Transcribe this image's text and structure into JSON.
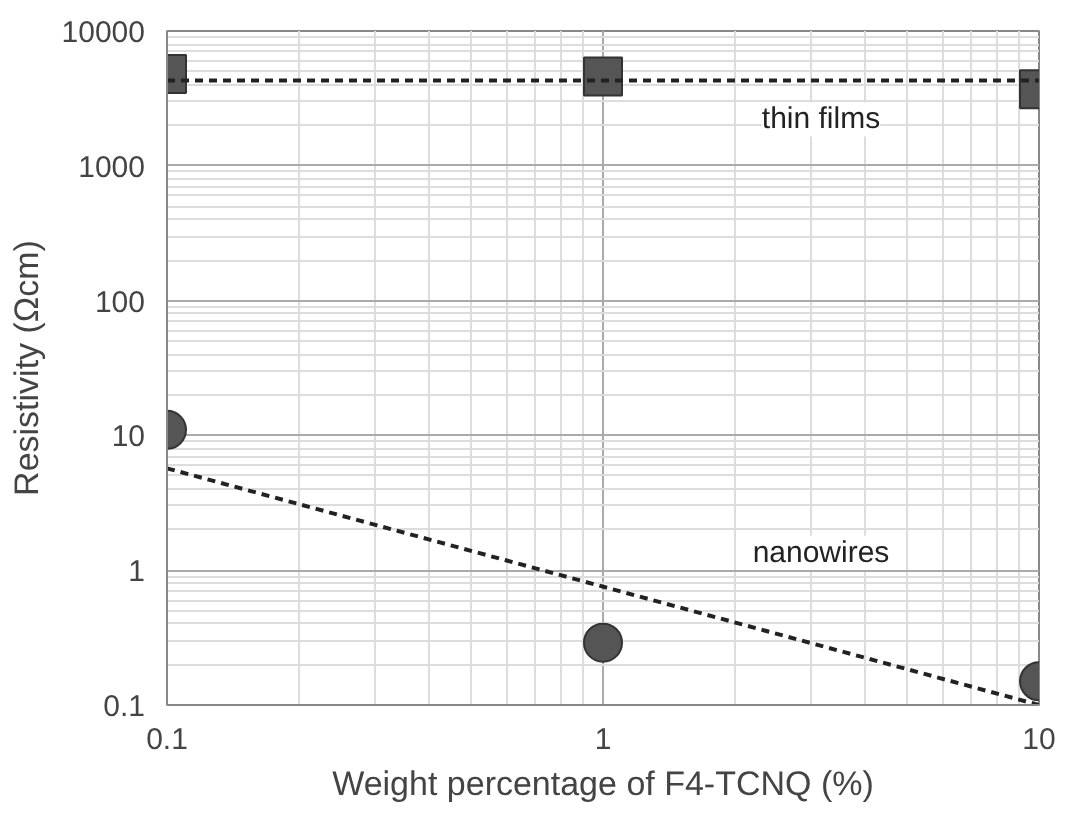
{
  "chart_data": {
    "type": "scatter",
    "xlabel": "Weight percentage of F4-TCNQ (%)",
    "ylabel": "Resistivity (Ωcm)",
    "log": "xy",
    "grid": true,
    "xlim": [
      0.1,
      10
    ],
    "ylim": [
      0.1,
      10000
    ],
    "xticks": [
      0.1,
      1,
      10
    ],
    "yticks": [
      0.1,
      1,
      10,
      100,
      1000,
      10000
    ],
    "series": [
      {
        "marker": "square",
        "color": "#555555",
        "x": [
          0.1,
          1,
          10
        ],
        "values": [
          4800,
          4600,
          3700
        ]
      },
      {
        "marker": "circle",
        "color": "#555555",
        "x": [
          0.1,
          1,
          10
        ],
        "values": [
          11,
          0.29,
          0.15
        ]
      },
      {
        "name": "thin films",
        "type": "line",
        "line_style": "dashed",
        "color": "#222222",
        "x": [
          0.1,
          10
        ],
        "values": [
          4300,
          4300
        ]
      },
      {
        "name": "nanowires",
        "type": "line",
        "line_style": "dashed",
        "color": "#222222",
        "x": [
          0.1,
          10
        ],
        "values": [
          5.7,
          0.1
        ]
      }
    ]
  }
}
